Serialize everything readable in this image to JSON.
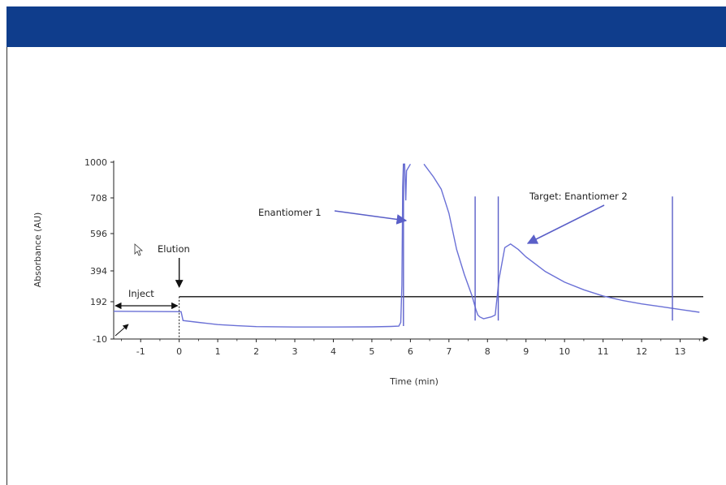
{
  "chart_data": {
    "type": "line",
    "xlabel": "Time (min)",
    "ylabel": "Absorbance (AU)",
    "xlim": [
      -1.7,
      13.6
    ],
    "ylim": [
      -10,
      1000
    ],
    "x_ticks": [
      -1,
      0,
      1,
      2,
      3,
      4,
      5,
      6,
      7,
      8,
      9,
      10,
      11,
      12,
      13
    ],
    "y_ticks": [
      -10,
      192,
      394,
      596,
      708,
      1000
    ],
    "y_tick_labels": [
      "-10",
      "192",
      "394",
      "596",
      "708",
      "1000"
    ],
    "grid": false,
    "series": [
      {
        "color": "#6a70d6",
        "x": [
          -1.7,
          0.05,
          0.1,
          0.5,
          1,
          1.5,
          2,
          3,
          4,
          5,
          5.5,
          5.7,
          5.75,
          5.78,
          5.8,
          5.82,
          5.85,
          5.88,
          5.9,
          6.0
        ],
        "y": [
          140,
          138,
          90,
          80,
          68,
          62,
          57,
          55,
          55,
          56,
          58,
          60,
          80,
          300,
          800,
          985,
          985,
          700,
          930,
          985
        ]
      },
      {
        "color": "#6a70d6",
        "x": [
          6.35,
          6.6,
          6.8,
          7.0,
          7.2,
          7.4,
          7.6,
          7.7,
          7.75,
          7.8,
          7.9,
          8.0,
          8.1,
          8.2,
          8.3,
          8.45,
          8.6,
          8.8,
          9.0,
          9.5,
          10.0,
          10.5,
          11.0,
          11.5,
          12.0,
          12.5,
          13.0,
          13.5
        ],
        "y": [
          985,
          880,
          780,
          660,
          510,
          370,
          230,
          150,
          120,
          110,
          100,
          105,
          110,
          120,
          340,
          520,
          540,
          510,
          470,
          390,
          320,
          270,
          230,
          200,
          180,
          165,
          150,
          135
        ]
      }
    ],
    "spikes": [
      {
        "x": 5.82,
        "y_from": 60,
        "y_to": 985
      },
      {
        "x": 7.68,
        "y_from": 90,
        "y_to": 720
      },
      {
        "x": 8.28,
        "y_from": 90,
        "y_to": 720
      },
      {
        "x": 12.8,
        "y_from": 90,
        "y_to": 720
      }
    ],
    "elution_level": 225,
    "inject_range": [
      -1.7,
      0
    ],
    "annotations": {
      "enantiomer1": "Enantiomer 1",
      "target": "Target: Enantiomer 2",
      "elution": "Elution",
      "inject": "Inject"
    }
  }
}
